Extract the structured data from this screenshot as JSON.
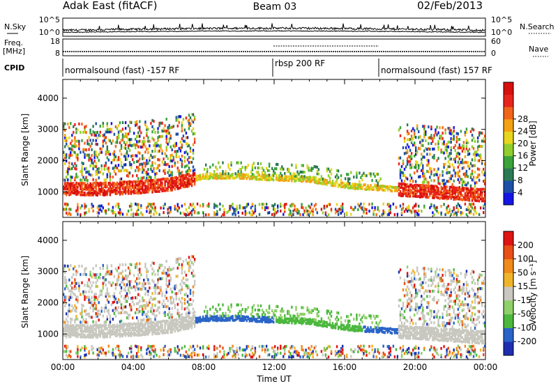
{
  "header": {
    "station": "Adak East (fitACF)",
    "beam": "Beam 03",
    "date": "02/Feb/2013"
  },
  "strip": {
    "nsky_label": "N.Sky",
    "nsky_ticks": [
      "10^5",
      "10^0"
    ],
    "nsearch_label": "N.Search",
    "nsearch_ticks": [
      "10^5",
      "10^0"
    ],
    "freq_label_1": "Freq.",
    "freq_label_2": "[MHz]",
    "freq_ticks": [
      "18",
      "8"
    ],
    "nave_label": "Nave",
    "nave_ticks": [
      "60",
      "0"
    ],
    "cpid_label": "CPID",
    "cpid_segments": [
      {
        "label": "normalsound (fast) -157 RF",
        "start": 0,
        "end": 12
      },
      {
        "label": "rbsp 200 RF",
        "start": 12,
        "end": 18
      },
      {
        "label": "normalsound (fast) 157 RF",
        "start": 18,
        "end": 24
      }
    ]
  },
  "chart_data": [
    {
      "type": "heatmap",
      "title": "",
      "quantity": "power",
      "xlabel": "",
      "ylabel": "Slant Range [km]",
      "xlim": [
        0,
        24
      ],
      "ylim": [
        180,
        4600
      ],
      "y_ticks": [
        1000,
        2000,
        3000,
        4000
      ],
      "x_ticks": [
        0,
        4,
        8,
        12,
        16,
        20,
        24
      ],
      "colorbar": {
        "label": "Power [dB]",
        "range": [
          0,
          32
        ],
        "ticks": [
          "4",
          "8",
          "12",
          "16",
          "20",
          "24",
          "28"
        ],
        "colors": [
          "#1515e6",
          "#1e4fa8",
          "#2c7a55",
          "#3aa33a",
          "#8fce2d",
          "#e8d51e",
          "#f4a114",
          "#f1651a",
          "#e8251c",
          "#d80f0f"
        ]
      },
      "features": [
        {
          "label": "main scatter echo",
          "center_range_km": [
            1100,
            1100,
            1150,
            1250,
            1500,
            1500,
            1450,
            1400,
            1200,
            1050,
            900
          ],
          "hours": [
            0,
            2,
            4,
            6,
            8,
            10,
            12,
            14,
            16,
            20,
            24
          ]
        }
      ]
    },
    {
      "type": "heatmap",
      "title": "",
      "quantity": "velocity",
      "xlabel": "Time UT",
      "ylabel": "Slant Range [km]",
      "xlim": [
        0,
        24
      ],
      "ylim": [
        180,
        4600
      ],
      "y_ticks": [
        1000,
        2000,
        3000,
        4000
      ],
      "x_ticks": [
        "00:00",
        "04:00",
        "08:00",
        "12:00",
        "16:00",
        "20:00",
        "00:00"
      ],
      "colorbar": {
        "label": "Velocity [m s⁻¹]",
        "ticks": [
          "200",
          "100",
          "50",
          "15",
          "-15",
          "-50",
          "-100",
          "-200"
        ],
        "colors": [
          "#1d2fb0",
          "#2a64c8",
          "#4cb83e",
          "#8fd06a",
          "#c8c8c0",
          "#f0b42a",
          "#f08a1a",
          "#e85018",
          "#e01414"
        ]
      }
    }
  ],
  "colors": {
    "ground_scatter": "#c8c8c0",
    "axes": "#000000"
  }
}
